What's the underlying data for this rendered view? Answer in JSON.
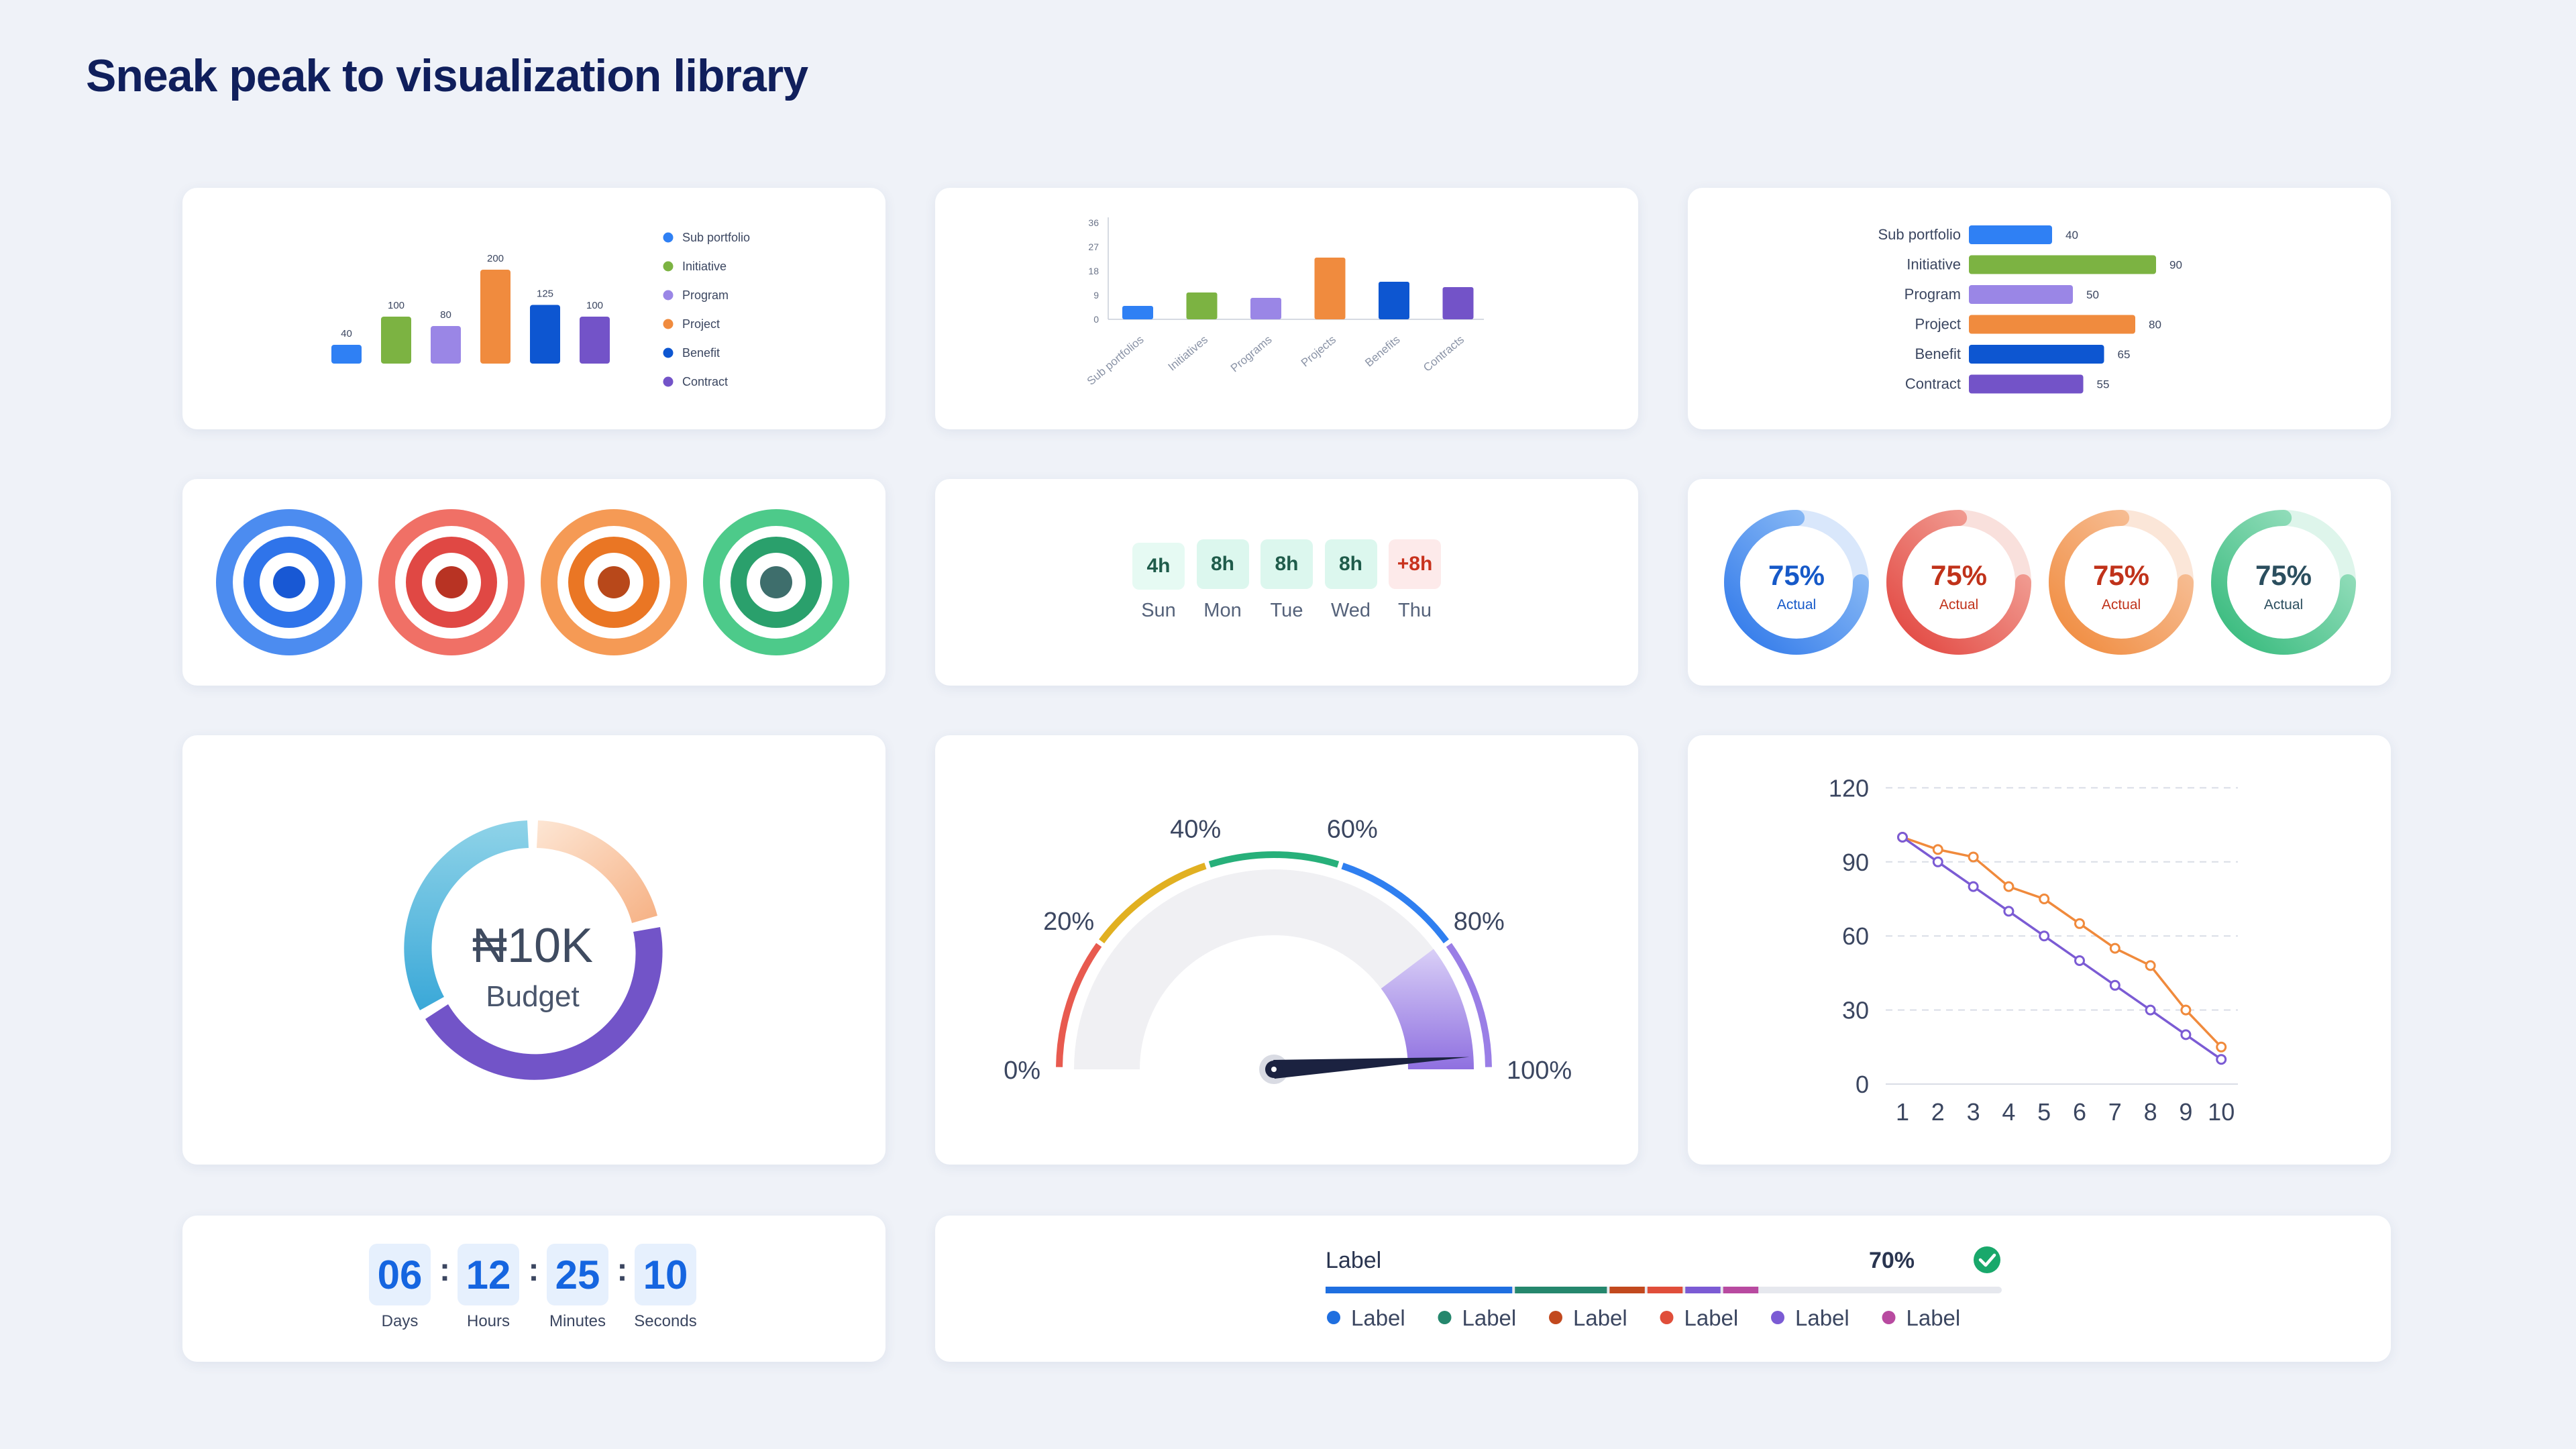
{
  "page": {
    "title": "Sneak peak to visualization library"
  },
  "colors": {
    "blue": "#2f80f4",
    "green": "#7cb342",
    "lavender": "#9a86e6",
    "orange": "#f08b3e",
    "navy": "#0d56d1",
    "purple": "#7353c8",
    "red": "#f06b63",
    "teal": "#3cbf86"
  },
  "chart_data": [
    {
      "type": "bar",
      "categories": [
        "Sub portfolio",
        "Initiative",
        "Program",
        "Project",
        "Benefit",
        "Contract"
      ],
      "values": [
        40,
        100,
        80,
        200,
        125,
        100
      ],
      "legend": [
        "Sub portfolio",
        "Initiative",
        "Program",
        "Project",
        "Benefit",
        "Contract"
      ],
      "data_labels": [
        "40",
        "100",
        "80",
        "200",
        "125",
        "100"
      ]
    },
    {
      "type": "bar",
      "categories": [
        "Sub portfolios",
        "Initiatives",
        "Programs",
        "Projects",
        "Benefits",
        "Contracts"
      ],
      "values": [
        5,
        10,
        8,
        23,
        14,
        12
      ],
      "ylim": [
        0,
        36
      ],
      "yticks": [
        "0",
        "9",
        "18",
        "27",
        "36"
      ]
    },
    {
      "type": "bar",
      "orientation": "horizontal",
      "categories": [
        "Sub portfolio",
        "Initiative",
        "Program",
        "Project",
        "Benefit",
        "Contract"
      ],
      "values": [
        40,
        90,
        50,
        80,
        65,
        55
      ],
      "data_labels": [
        "40",
        "90",
        "50",
        "80",
        "65",
        "55"
      ]
    },
    {
      "type": "line",
      "x": [
        1,
        2,
        3,
        4,
        5,
        6,
        7,
        8,
        9,
        10
      ],
      "xticks": [
        "1",
        "2",
        "3",
        "4",
        "5",
        "6",
        "7",
        "8",
        "9",
        "10"
      ],
      "yticks": [
        "0",
        "30",
        "60",
        "90",
        "120"
      ],
      "ylim": [
        0,
        120
      ],
      "series": [
        {
          "values": [
            100,
            95,
            92,
            80,
            75,
            65,
            55,
            48,
            30,
            15
          ]
        },
        {
          "values": [
            100,
            90,
            80,
            70,
            60,
            50,
            40,
            30,
            20,
            10
          ]
        }
      ]
    }
  ],
  "timesheet": {
    "days": [
      {
        "value": "4h",
        "label": "Sun",
        "state": "partial"
      },
      {
        "value": "8h",
        "label": "Mon",
        "state": "full"
      },
      {
        "value": "8h",
        "label": "Tue",
        "state": "full"
      },
      {
        "value": "8h",
        "label": "Wed",
        "state": "full"
      },
      {
        "value": "+8h",
        "label": "Thu",
        "state": "over"
      }
    ]
  },
  "progress_rings": [
    {
      "value": "75%",
      "label": "Actual",
      "fraction": 0.75
    },
    {
      "value": "75%",
      "label": "Actual",
      "fraction": 0.75
    },
    {
      "value": "75%",
      "label": "Actual",
      "fraction": 0.75
    },
    {
      "value": "75%",
      "label": "Actual",
      "fraction": 0.75
    }
  ],
  "budget": {
    "value": "₦10K",
    "label": "Budget"
  },
  "gauge": {
    "labels": [
      "0%",
      "20%",
      "40%",
      "60%",
      "80%",
      "100%"
    ],
    "value_percent": 98
  },
  "countdown": {
    "units": [
      {
        "value": "06",
        "label": "Days"
      },
      {
        "value": "12",
        "label": "Hours"
      },
      {
        "value": "25",
        "label": "Minutes"
      },
      {
        "value": "10",
        "label": "Seconds"
      }
    ],
    "separator": ":"
  },
  "progress_bar": {
    "label": "Label",
    "percent_text": "70%",
    "percent": 70,
    "legend": [
      "Label",
      "Label",
      "Label",
      "Label",
      "Label",
      "Label"
    ]
  }
}
